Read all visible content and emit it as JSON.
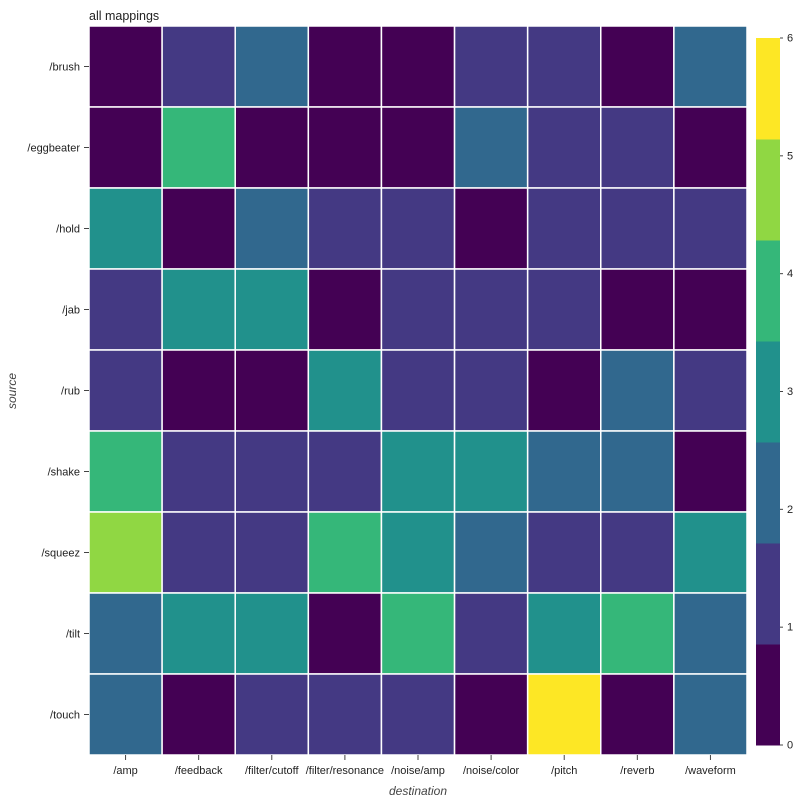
{
  "chart_data": {
    "type": "heatmap",
    "title": "all mappings",
    "xlabel": "destination",
    "ylabel": "source",
    "x_categories": [
      "/amp",
      "/feedback",
      "/filter/cutoff",
      "/filter/resonance",
      "/noise/amp",
      "/noise/color",
      "/pitch",
      "/reverb",
      "/waveform"
    ],
    "y_categories": [
      "/brush",
      "/eggbeater",
      "/hold",
      "/jab",
      "/rub",
      "/shake",
      "/squeez",
      "/tilt",
      "/touch"
    ],
    "values": [
      [
        0,
        1,
        2,
        0,
        0,
        1,
        1,
        0,
        2
      ],
      [
        0,
        4,
        0,
        0,
        0,
        2,
        1,
        1,
        0
      ],
      [
        3,
        0,
        2,
        1,
        1,
        0,
        1,
        1,
        1
      ],
      [
        1,
        3,
        3,
        0,
        1,
        1,
        1,
        0,
        0
      ],
      [
        1,
        0,
        0,
        3,
        1,
        1,
        0,
        2,
        1
      ],
      [
        4,
        1,
        1,
        1,
        3,
        3,
        2,
        2,
        0
      ],
      [
        5,
        1,
        1,
        4,
        3,
        2,
        1,
        1,
        3
      ],
      [
        2,
        3,
        3,
        0,
        4,
        1,
        3,
        4,
        2
      ],
      [
        2,
        0,
        1,
        1,
        1,
        0,
        6,
        0,
        2
      ]
    ],
    "colorbar": {
      "min": 0,
      "max": 6,
      "ticks": [
        "0",
        "1",
        "2",
        "3",
        "4",
        "5",
        "6"
      ],
      "colors": [
        "#440154",
        "#443983",
        "#31688e",
        "#21918c",
        "#35b779",
        "#90d743",
        "#fde725"
      ]
    },
    "grid": true
  }
}
